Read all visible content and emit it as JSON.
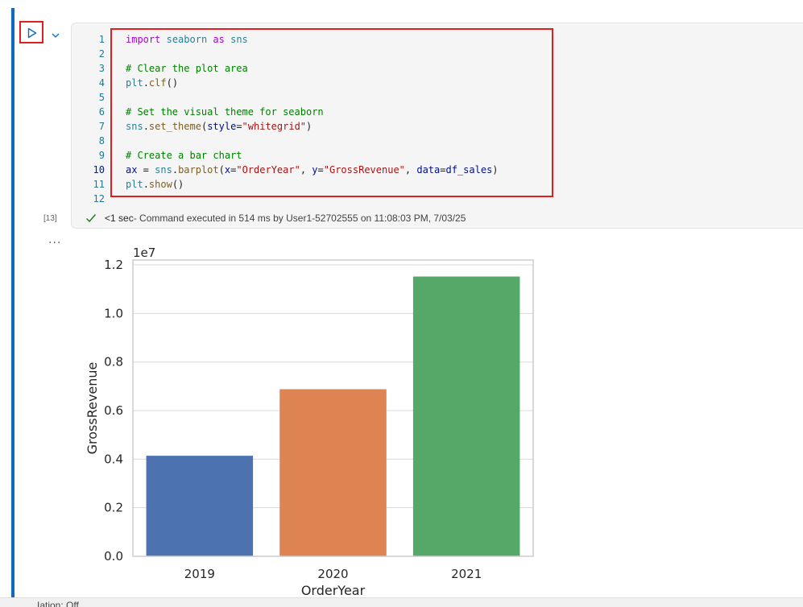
{
  "cell": {
    "execution_count": "[13]",
    "status": {
      "duration": "<1 sec",
      "message": " - Command executed in 514 ms by User1-52702555 on 11:08:03 PM, 7/03/25"
    },
    "output_more": "...",
    "line_numbers": [
      "1",
      "2",
      "3",
      "4",
      "5",
      "6",
      "7",
      "8",
      "9",
      "10",
      "11",
      "12"
    ],
    "code": {
      "l1_kw": "import",
      "l1_mod": "seaborn",
      "l1_as": "as",
      "l1_alias": "sns",
      "l3_comment": "# Clear the plot area",
      "l4_obj": "plt",
      "l4_fn": "clf",
      "l4_rest": "()",
      "l6_comment": "# Set the visual theme for seaborn",
      "l7_obj": "sns",
      "l7_fn": "set_theme",
      "l7_open": "(",
      "l7_param": "style",
      "l7_eq": "=",
      "l7_str": "\"whitegrid\"",
      "l7_close": ")",
      "l9_comment": "# Create a bar chart",
      "l10_var": "ax",
      "l10_eq": " = ",
      "l10_obj": "sns",
      "l10_fn": "barplot",
      "l10_open": "(",
      "l10_p1": "x",
      "l10_eq1": "=",
      "l10_s1": "\"OrderYear\"",
      "l10_sep1": ", ",
      "l10_p2": "y",
      "l10_eq2": "=",
      "l10_s2": "\"GrossRevenue\"",
      "l10_sep2": ", ",
      "l10_p3": "data",
      "l10_eq3": "=",
      "l10_v3": "df_sales",
      "l10_close": ")",
      "l11_obj": "plt",
      "l11_fn": "show",
      "l11_rest": "()"
    }
  },
  "footer": {
    "text": "...Iation: Off"
  },
  "colors": {
    "accent": "#0f6cbd",
    "highlight": "#e01e1e",
    "success": "#107c10"
  },
  "chart_data": {
    "type": "bar",
    "categories": [
      "2019",
      "2020",
      "2021"
    ],
    "values": [
      4140000,
      6880000,
      11520000
    ],
    "colors": [
      "#4c72b0",
      "#dd8452",
      "#55a868"
    ],
    "title": "",
    "xlabel": "OrderYear",
    "ylabel": "GrossRevenue",
    "offset_text": "1e7",
    "scale": 10000000,
    "ylim": [
      0,
      12200000
    ],
    "yticks": [
      0,
      2000000,
      4000000,
      6000000,
      8000000,
      10000000,
      12000000
    ],
    "ytick_labels": [
      "0.0",
      "0.2",
      "0.4",
      "0.6",
      "0.8",
      "1.0",
      "1.2"
    ],
    "grid": true
  }
}
